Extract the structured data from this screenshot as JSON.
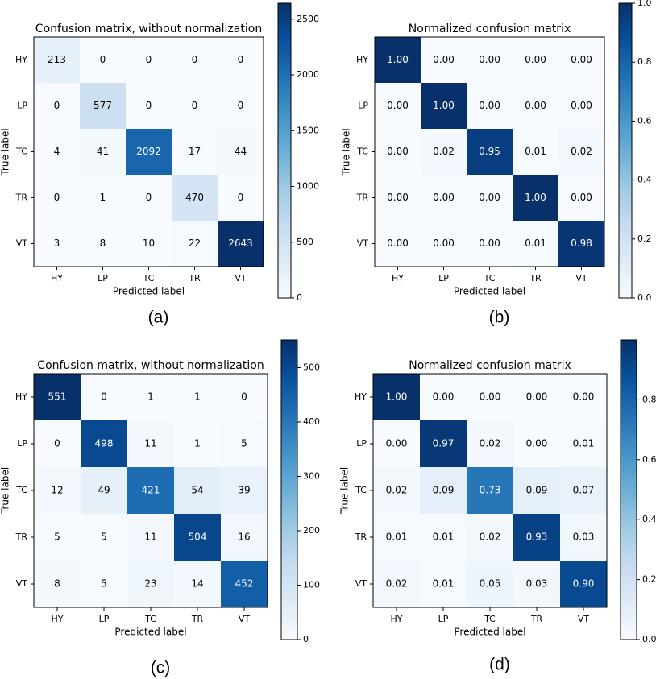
{
  "chart_data": [
    {
      "id": "a",
      "type": "heatmap",
      "title": "Confusion matrix, without normalization",
      "xlabel": "Predicted label",
      "ylabel": "True label",
      "caption": "(a)",
      "categories": [
        "HY",
        "LP",
        "TC",
        "TR",
        "VT"
      ],
      "decimals": 0,
      "matrix": [
        [
          213,
          0,
          0,
          0,
          0
        ],
        [
          0,
          577,
          0,
          0,
          0
        ],
        [
          4,
          41,
          2092,
          17,
          44
        ],
        [
          0,
          1,
          0,
          470,
          0
        ],
        [
          3,
          8,
          10,
          22,
          2643
        ]
      ],
      "vmin": 0,
      "vmax": 2643,
      "colorbar_ticks": [
        0,
        500,
        1000,
        1500,
        2000,
        2500
      ],
      "colorbar_labels": [
        "0",
        "500",
        "1000",
        "1500",
        "2000",
        "2500"
      ]
    },
    {
      "id": "b",
      "type": "heatmap",
      "title": "Normalized confusion matrix",
      "xlabel": "Predicted label",
      "ylabel": "True label",
      "caption": "(b)",
      "categories": [
        "HY",
        "LP",
        "TC",
        "TR",
        "VT"
      ],
      "decimals": 2,
      "matrix": [
        [
          1.0,
          0.0,
          0.0,
          0.0,
          0.0
        ],
        [
          0.0,
          1.0,
          0.0,
          0.0,
          0.0
        ],
        [
          0.0,
          0.02,
          0.95,
          0.01,
          0.02
        ],
        [
          0.0,
          0.0,
          0.0,
          1.0,
          0.0
        ],
        [
          0.0,
          0.0,
          0.0,
          0.01,
          0.98
        ]
      ],
      "vmin": 0,
      "vmax": 1.0,
      "colorbar_ticks": [
        0,
        0.2,
        0.4,
        0.6,
        0.8,
        1.0
      ],
      "colorbar_labels": [
        "0.0",
        "0.2",
        "0.4",
        "0.6",
        "0.8",
        "1.0"
      ]
    },
    {
      "id": "c",
      "type": "heatmap",
      "title": "Confusion matrix, without normalization",
      "xlabel": "Predicted label",
      "ylabel": "True label",
      "caption": "(c)",
      "categories": [
        "HY",
        "LP",
        "TC",
        "TR",
        "VT"
      ],
      "decimals": 0,
      "matrix": [
        [
          551,
          0,
          1,
          1,
          0
        ],
        [
          0,
          498,
          11,
          1,
          5
        ],
        [
          12,
          49,
          421,
          54,
          39
        ],
        [
          5,
          5,
          11,
          504,
          16
        ],
        [
          8,
          5,
          23,
          14,
          452
        ]
      ],
      "vmin": 0,
      "vmax": 551,
      "colorbar_ticks": [
        0,
        100,
        200,
        300,
        400,
        500
      ],
      "colorbar_labels": [
        "0",
        "100",
        "200",
        "300",
        "400",
        "500"
      ]
    },
    {
      "id": "d",
      "type": "heatmap",
      "title": "Normalized confusion matrix",
      "xlabel": "Predicted label",
      "ylabel": "True label",
      "caption": "(d)",
      "categories": [
        "HY",
        "LP",
        "TC",
        "TR",
        "VT"
      ],
      "decimals": 2,
      "matrix": [
        [
          1.0,
          0.0,
          0.0,
          0.0,
          0.0
        ],
        [
          0.0,
          0.97,
          0.02,
          0.0,
          0.01
        ],
        [
          0.02,
          0.09,
          0.73,
          0.09,
          0.07
        ],
        [
          0.01,
          0.01,
          0.02,
          0.93,
          0.03
        ],
        [
          0.02,
          0.01,
          0.05,
          0.03,
          0.9
        ]
      ],
      "vmin": 0,
      "vmax": 1.0,
      "colorbar_ticks": [
        0,
        0.2,
        0.4,
        0.6,
        0.8
      ],
      "colorbar_labels": [
        "0.0",
        "0.2",
        "0.4",
        "0.6",
        "0.8"
      ]
    }
  ],
  "colors": {
    "cmap_stops": [
      "#f7fbff",
      "#deebf7",
      "#c6dbef",
      "#9ecae1",
      "#6baed6",
      "#4292c6",
      "#2171b5",
      "#08519c",
      "#08306b"
    ],
    "axis": "#000000",
    "text_dark": "#000000",
    "text_light": "#ffffff"
  }
}
